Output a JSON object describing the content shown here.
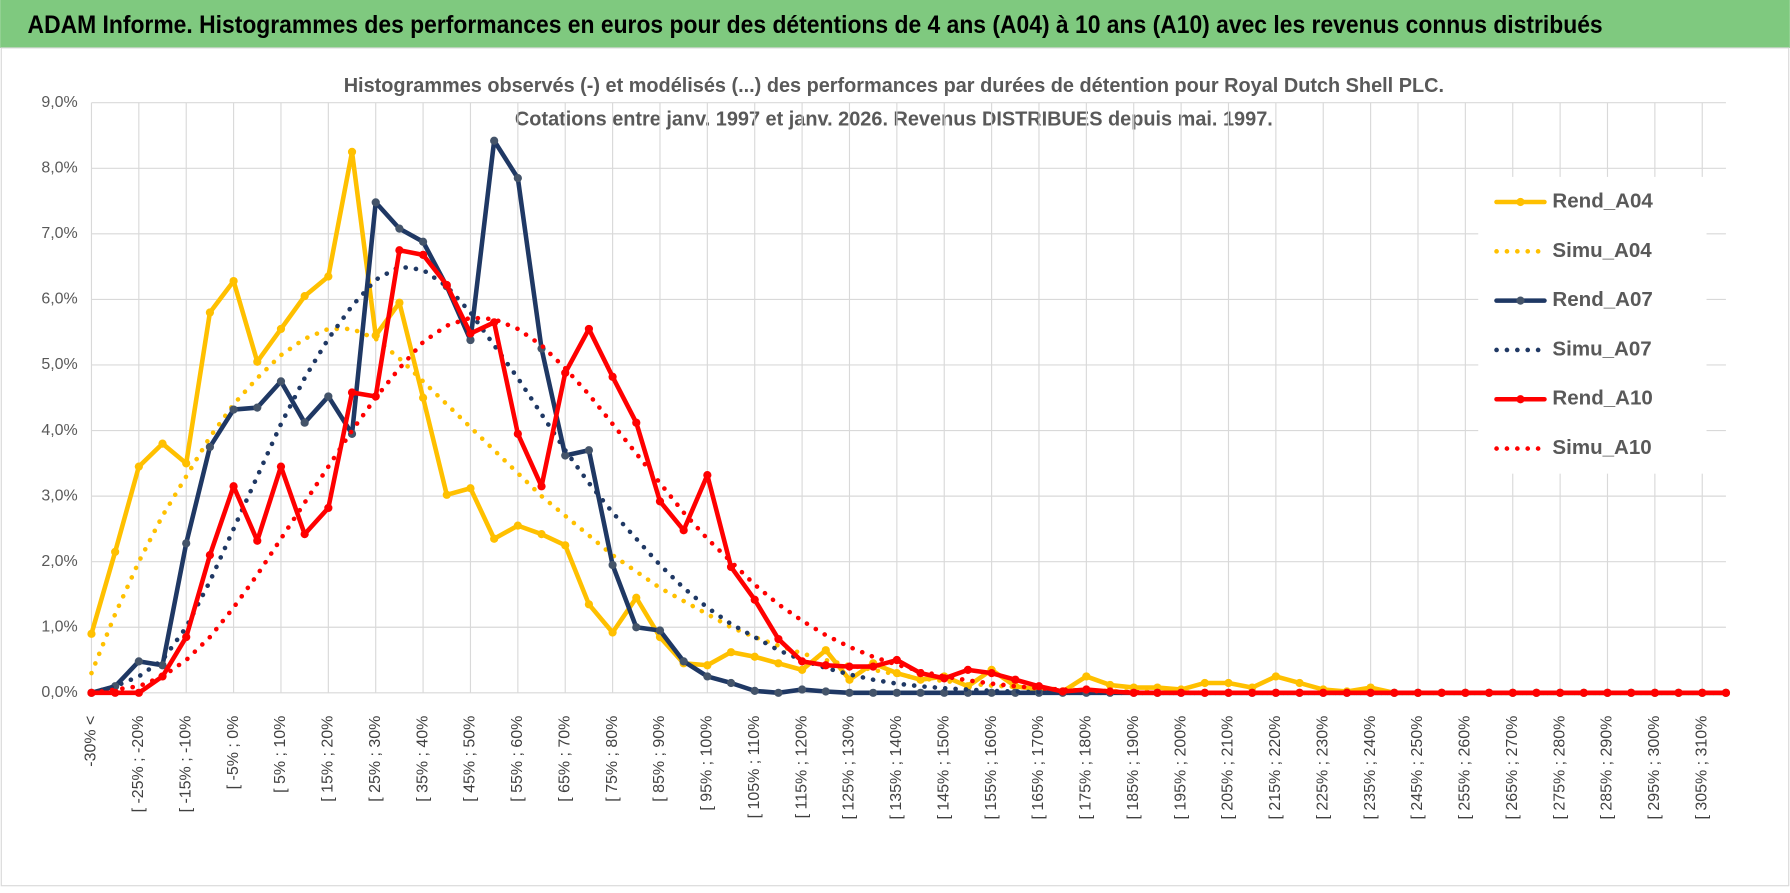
{
  "chart_data": {
    "type": "line",
    "header": "ADAM Informe. Histogrammes des performances en euros pour des détentions de 4 ans (A04) à 10 ans (A10) avec les revenus connus distribués",
    "title": "Histogrammes observés (-) et modélisés (...) des performances par durées de détention pour Royal Dutch Shell PLC.",
    "subtitle": "Cotations entre janv. 1997 et janv. 2026. Revenus DISTRIBUES depuis mai. 1997.",
    "categories": [
      "-30% <",
      null,
      "[ -25% ; -20%",
      null,
      "[ -15% ; -10%",
      null,
      "[ -5% ; 0%",
      null,
      "[ 5% ; 10%",
      null,
      "[ 15% ; 20%",
      null,
      "[ 25% ; 30%",
      null,
      "[ 35% ; 40%",
      null,
      "[ 45% ; 50%",
      null,
      "[ 55% ; 60%",
      null,
      "[ 65% ; 70%",
      null,
      "[ 75% ; 80%",
      null,
      "[ 85% ; 90%",
      null,
      "[ 95% ; 100%",
      null,
      "[ 105% ; 110%",
      null,
      "[ 115% ; 120%",
      null,
      "[ 125% ; 130%",
      null,
      "[ 135% ; 140%",
      null,
      "[ 145% ; 150%",
      null,
      "[ 155% ; 160%",
      null,
      "[ 165% ; 170%",
      null,
      "[ 175% ; 180%",
      null,
      "[ 185% ; 190%",
      null,
      "[ 195% ; 200%",
      null,
      "[ 205% ; 210%",
      null,
      "[ 215% ; 220%",
      null,
      "[ 225% ; 230%",
      null,
      "[ 235% ; 240%",
      null,
      "[ 245% ; 250%",
      null,
      "[ 255% ; 260%",
      null,
      "[ 265% ; 270%",
      null,
      "[ 275% ; 280%",
      null,
      "[ 285% ; 290%",
      null,
      "[ 295% ; 300%",
      null,
      "[ 305% ; 310%",
      null
    ],
    "series": [
      {
        "name": "Rend_A04",
        "color": "#ffc000",
        "line_style": "solid",
        "markers": true,
        "values": [
          0.9,
          2.15,
          3.45,
          3.8,
          3.5,
          5.8,
          6.28,
          5.05,
          5.55,
          6.05,
          6.35,
          8.25,
          5.45,
          5.95,
          4.5,
          3.02,
          3.12,
          2.35,
          2.55,
          2.42,
          2.25,
          1.35,
          0.92,
          1.45,
          0.85,
          0.45,
          0.42,
          0.62,
          0.55,
          0.45,
          0.35,
          0.65,
          0.2,
          0.45,
          0.3,
          0.2,
          0.25,
          0.1,
          0.35,
          0.1,
          0.05,
          0.02,
          0.25,
          0.12,
          0.08,
          0.08,
          0.05,
          0.15,
          0.15,
          0.08,
          0.25,
          0.15,
          0.05,
          0.02,
          0.08,
          0,
          0,
          0,
          0,
          0,
          0,
          0,
          0,
          0,
          0,
          0,
          0,
          0,
          0,
          0
        ]
      },
      {
        "name": "Simu_A04",
        "color": "#ffc000",
        "line_style": "dotted",
        "markers": false,
        "values": [
          0.3,
          1.2,
          2.0,
          2.7,
          3.3,
          3.9,
          4.4,
          4.8,
          5.15,
          5.4,
          5.55,
          5.55,
          5.4,
          5.1,
          4.75,
          4.4,
          4.05,
          3.7,
          3.35,
          3.0,
          2.7,
          2.4,
          2.1,
          1.85,
          1.6,
          1.4,
          1.2,
          1.0,
          0.85,
          0.72,
          0.6,
          0.5,
          0.42,
          0.35,
          0.28,
          0.22,
          0.18,
          0.14,
          0.11,
          0.09,
          0.07,
          0.05,
          0.04,
          0.03,
          0.02,
          0.02,
          0.01,
          0,
          0,
          0,
          0,
          0,
          0,
          0,
          0,
          0,
          0,
          0,
          0,
          0,
          0,
          0,
          0,
          0,
          0,
          0,
          0,
          0,
          0,
          0
        ]
      },
      {
        "name": "Rend_A07",
        "color": "#1f3864",
        "line_style": "solid",
        "markers": true,
        "values": [
          0,
          0.1,
          0.48,
          0.42,
          2.28,
          3.75,
          4.32,
          4.35,
          4.75,
          4.12,
          4.52,
          3.95,
          7.48,
          7.08,
          6.88,
          6.2,
          5.38,
          8.42,
          7.85,
          5.25,
          3.62,
          3.7,
          1.95,
          1.0,
          0.95,
          0.48,
          0.25,
          0.15,
          0.03,
          0,
          0.05,
          0.02,
          0,
          0,
          0,
          0,
          0,
          0,
          0,
          0,
          0,
          0,
          0,
          0,
          0,
          0,
          0,
          0,
          0,
          0,
          0,
          0,
          0,
          0,
          0,
          0,
          0,
          0,
          0,
          0,
          0,
          0,
          0,
          0,
          0,
          0,
          0,
          0,
          0,
          0
        ]
      },
      {
        "name": "Simu_A07",
        "color": "#1f3864",
        "line_style": "dotted",
        "markers": false,
        "values": [
          0,
          0.1,
          0.25,
          0.5,
          1.0,
          1.7,
          2.5,
          3.3,
          4.1,
          4.8,
          5.4,
          5.9,
          6.3,
          6.5,
          6.45,
          6.2,
          5.8,
          5.3,
          4.8,
          4.25,
          3.7,
          3.2,
          2.75,
          2.35,
          1.95,
          1.6,
          1.3,
          1.05,
          0.85,
          0.65,
          0.5,
          0.38,
          0.28,
          0.2,
          0.14,
          0.1,
          0.07,
          0.05,
          0.03,
          0.02,
          0.01,
          0,
          0,
          0,
          0,
          0,
          0,
          0,
          0,
          0,
          0,
          0,
          0,
          0,
          0,
          0,
          0,
          0,
          0,
          0,
          0,
          0,
          0,
          0,
          0,
          0,
          0,
          0,
          0,
          0
        ]
      },
      {
        "name": "Rend_A10",
        "color": "#ff0000",
        "line_style": "solid",
        "markers": true,
        "values": [
          0,
          0,
          0,
          0.25,
          0.85,
          2.1,
          3.15,
          2.32,
          3.45,
          2.42,
          2.82,
          4.58,
          4.52,
          6.75,
          6.68,
          6.22,
          5.48,
          5.65,
          3.95,
          3.15,
          4.88,
          5.55,
          4.82,
          4.12,
          2.92,
          2.48,
          3.32,
          1.92,
          1.42,
          0.82,
          0.48,
          0.42,
          0.4,
          0.4,
          0.5,
          0.3,
          0.22,
          0.35,
          0.3,
          0.2,
          0.1,
          0.02,
          0.05,
          0.02,
          0,
          0,
          0,
          0,
          0,
          0,
          0,
          0,
          0,
          0,
          0,
          0,
          0,
          0,
          0,
          0,
          0,
          0,
          0,
          0,
          0,
          0,
          0,
          0,
          0,
          0
        ]
      },
      {
        "name": "Simu_A10",
        "color": "#ff0000",
        "line_style": "dotted",
        "markers": false,
        "values": [
          0,
          0.05,
          0.1,
          0.25,
          0.5,
          0.85,
          1.3,
          1.8,
          2.35,
          2.9,
          3.45,
          4.0,
          4.5,
          4.95,
          5.35,
          5.6,
          5.72,
          5.7,
          5.55,
          5.3,
          4.95,
          4.55,
          4.1,
          3.65,
          3.2,
          2.75,
          2.35,
          2.0,
          1.65,
          1.35,
          1.1,
          0.88,
          0.7,
          0.55,
          0.43,
          0.33,
          0.25,
          0.19,
          0.14,
          0.1,
          0.07,
          0.05,
          0.03,
          0.02,
          0.01,
          0,
          0,
          0,
          0,
          0,
          0,
          0,
          0,
          0,
          0,
          0,
          0,
          0,
          0,
          0,
          0,
          0,
          0,
          0,
          0,
          0,
          0,
          0,
          0,
          0
        ]
      }
    ],
    "ylim": [
      0,
      9
    ],
    "yticks": [
      {
        "value": 0,
        "label": "0,0%"
      },
      {
        "value": 1,
        "label": "1,0%"
      },
      {
        "value": 2,
        "label": "2,0%"
      },
      {
        "value": 3,
        "label": "3,0%"
      },
      {
        "value": 4,
        "label": "4,0%"
      },
      {
        "value": 5,
        "label": "5,0%"
      },
      {
        "value": 6,
        "label": "6,0%"
      },
      {
        "value": 7,
        "label": "7,0%"
      },
      {
        "value": 8,
        "label": "8,0%"
      },
      {
        "value": 9,
        "label": "9,0%"
      }
    ],
    "grid": true,
    "legend": "right"
  }
}
